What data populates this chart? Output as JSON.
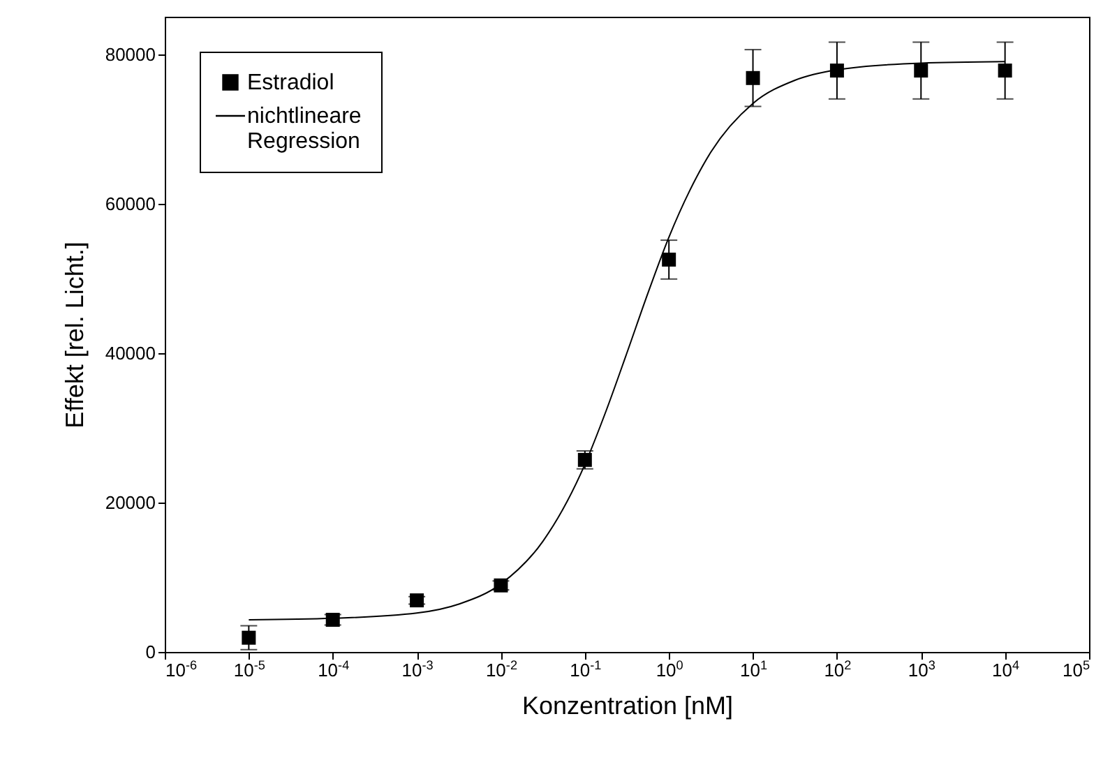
{
  "chart_data": {
    "type": "scatter",
    "xlabel": "Konzentration [nM]",
    "ylabel": "Effekt  [rel. Licht.]",
    "log": "x",
    "grid": false,
    "legend": "top left",
    "xlim": [
      1e-06,
      100000.0
    ],
    "xticks": [
      {
        "value": 1e-06,
        "label": "10$^{-6}$"
      },
      {
        "value": 1e-05,
        "label": "10$^{-5}$"
      },
      {
        "value": 0.0001,
        "label": "10$^{-4}$"
      },
      {
        "value": 0.001,
        "label": "10$^{-3}$"
      },
      {
        "value": 0.01,
        "label": "10$^{-2}$"
      },
      {
        "value": 0.1,
        "label": "10$^{-1}$"
      },
      {
        "value": 1,
        "label": "10$^{0}$"
      },
      {
        "value": 10,
        "label": "10$^{1}$"
      },
      {
        "value": 100,
        "label": "10$^{2}$"
      },
      {
        "value": 1000,
        "label": "10$^{3}$"
      },
      {
        "value": 10000,
        "label": "10$^{4}$"
      },
      {
        "value": 100000,
        "label": "10$^{5}$"
      }
    ],
    "ylim": [
      0,
      85000
    ],
    "yticks": [
      0,
      20000,
      40000,
      60000,
      80000
    ],
    "series": [
      {
        "name": "Estradiol",
        "type": "scatter",
        "marker": "square",
        "color": "#000000",
        "x": [
          1e-05,
          0.0001,
          0.001,
          0.01,
          0.1,
          1,
          10,
          100,
          1000,
          10000
        ],
        "values": [
          1900,
          4300,
          6900,
          8900,
          25700,
          52500,
          76800,
          77800,
          77800,
          77800
        ],
        "errors": [
          1600,
          700,
          500,
          600,
          1200,
          2600,
          3800,
          3800,
          3800,
          3800
        ]
      },
      {
        "name": "nichtlineare Regression",
        "type": "line",
        "line_style": "solid",
        "color": "#000000",
        "x": [
          1e-05,
          0.0001,
          0.001,
          0.00316,
          0.01,
          0.0316,
          0.1,
          0.178,
          0.316,
          0.562,
          1,
          1.78,
          3.16,
          10,
          31.6,
          100,
          1000,
          10000
        ],
        "values": [
          4300,
          4500,
          5200,
          6400,
          9100,
          14800,
          25100,
          32200,
          40000,
          48000,
          55500,
          61800,
          66900,
          73400,
          76500,
          77900,
          78800,
          79000
        ]
      }
    ]
  }
}
